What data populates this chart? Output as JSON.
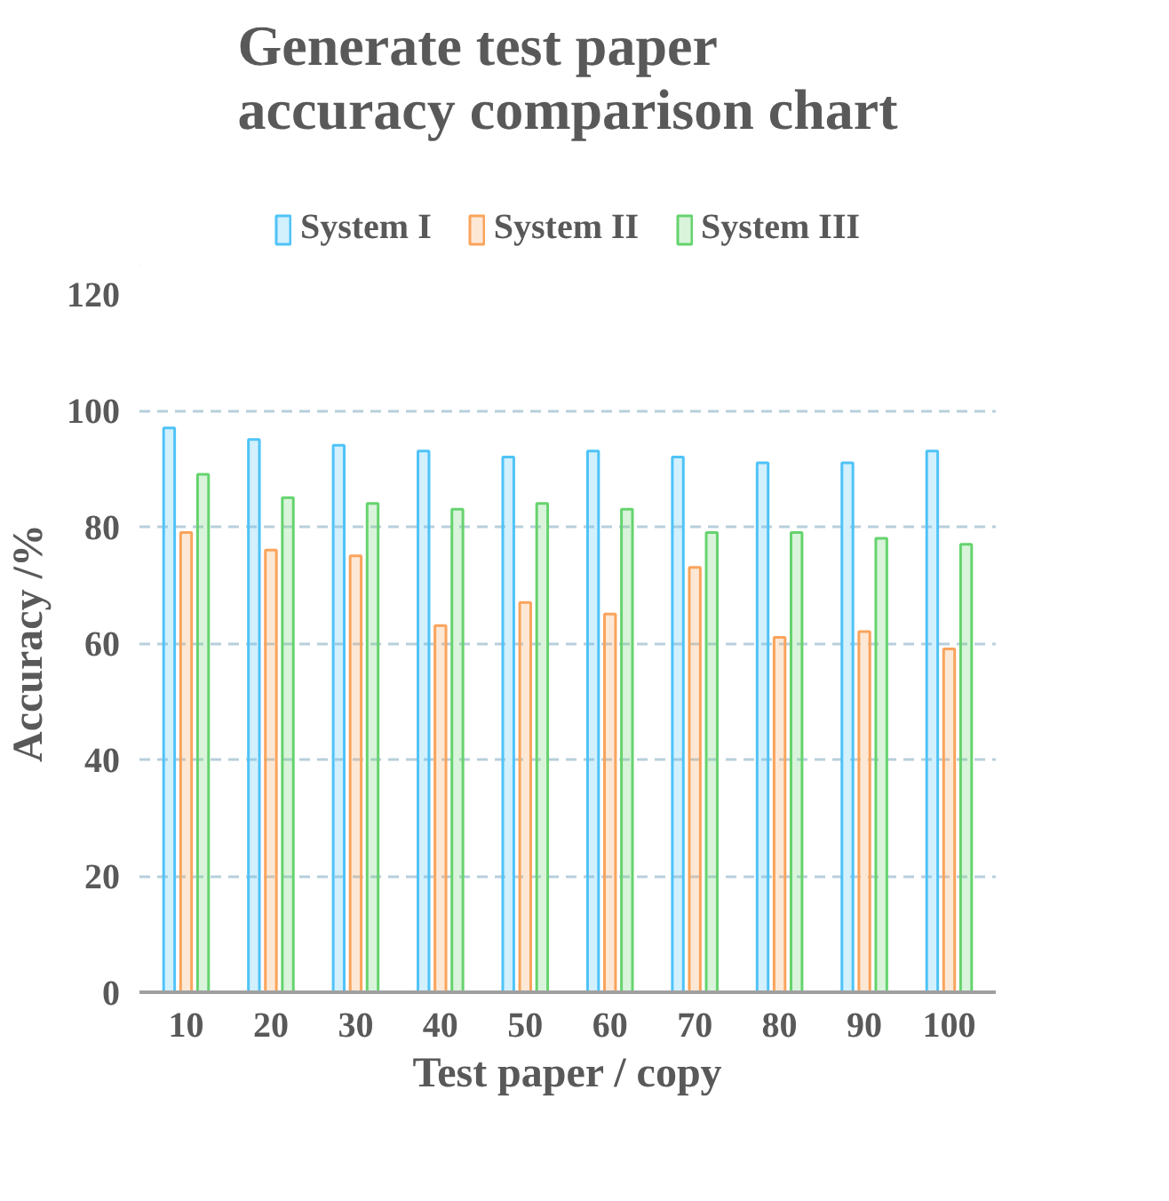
{
  "chart_data": {
    "type": "bar",
    "title": "Generate test paper accuracy comparison chart",
    "xlabel": "Test paper / copy",
    "ylabel": "Accuracy /%",
    "categories": [
      "10",
      "20",
      "30",
      "40",
      "50",
      "60",
      "70",
      "80",
      "90",
      "100"
    ],
    "series": [
      {
        "name": "System I",
        "color": "#4fc3f7",
        "values": [
          97,
          95,
          94,
          93,
          92,
          93,
          92,
          91,
          91,
          93
        ]
      },
      {
        "name": "System II",
        "color": "#f9a45c",
        "values": [
          79,
          76,
          75,
          63,
          67,
          65,
          73,
          61,
          62,
          59
        ]
      },
      {
        "name": "System III",
        "color": "#66d36e",
        "values": [
          89,
          85,
          84,
          83,
          84,
          83,
          79,
          79,
          78,
          77
        ]
      }
    ],
    "ylim": [
      0,
      120
    ],
    "yticks": [
      0,
      20,
      40,
      60,
      80,
      100,
      120
    ],
    "grid": "y",
    "legend": "top"
  }
}
